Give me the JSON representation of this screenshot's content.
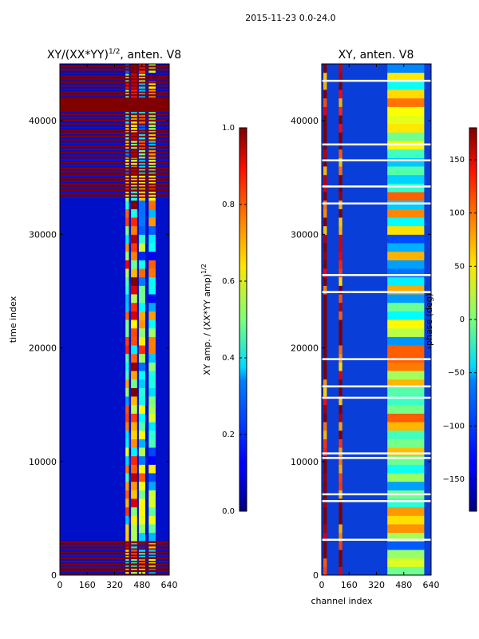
{
  "figure": {
    "suptitle": "2015-11-23 0.0-24.0"
  },
  "chart_data": [
    {
      "type": "heatmap",
      "title_prefix": "XY/(XX*YY)",
      "title_exponent": "1/2",
      "title_suffix": ", anten. V8",
      "xlabel": "",
      "ylabel": "time index",
      "xlim": [
        0,
        640
      ],
      "ylim": [
        0,
        45000
      ],
      "xticks": [
        0,
        160,
        320,
        480,
        640
      ],
      "xtick_labels": [
        "0",
        "160",
        "320",
        "480",
        "640"
      ],
      "yticks": [
        0,
        10000,
        20000,
        30000,
        40000
      ],
      "ytick_labels": [
        "0",
        "10000",
        "20000",
        "30000",
        "40000"
      ],
      "colormap": "jet",
      "colorbar": {
        "label_prefix": "XY amp. / (XX*YY amp)",
        "label_exponent": "1/2",
        "range": [
          0.0,
          1.0
        ],
        "ticks": [
          0.0,
          0.2,
          0.4,
          0.6,
          0.8,
          1.0
        ],
        "tick_labels": [
          "0.0",
          "0.2",
          "0.4",
          "0.6",
          "0.8",
          "1.0"
        ]
      },
      "background_value": 0.05,
      "saturated_bands": [
        {
          "start": 0,
          "end": 3000,
          "value": 1.0,
          "note": "dense stripes"
        },
        {
          "start": 33200,
          "end": 45000,
          "value": 1.0,
          "note": "dense stripes"
        },
        {
          "start": 40800,
          "end": 42000,
          "value": 1.0,
          "note": "solid"
        }
      ],
      "active_channels": [
        {
          "start": 384,
          "end": 404,
          "value": 0.55
        },
        {
          "start": 416,
          "end": 452,
          "value": 0.7
        },
        {
          "start": 462,
          "end": 500,
          "value": 0.5
        },
        {
          "start": 520,
          "end": 560,
          "value": 0.45
        }
      ]
    },
    {
      "type": "heatmap",
      "title": "XY, anten. V8",
      "xlabel": "channel index",
      "ylabel": "",
      "xlim": [
        0,
        640
      ],
      "ylim": [
        0,
        45000
      ],
      "xticks": [
        0,
        160,
        320,
        480,
        640
      ],
      "xtick_labels": [
        "0",
        "160",
        "320",
        "480",
        "640"
      ],
      "yticks": [
        0,
        10000,
        20000,
        30000,
        40000
      ],
      "ytick_labels": [
        "0",
        "10000",
        "20000",
        "30000",
        "40000"
      ],
      "colormap": "jet",
      "colorbar": {
        "label": "phase (deg)",
        "range": [
          -180,
          180
        ],
        "ticks": [
          -150,
          -100,
          -50,
          0,
          50,
          100,
          150
        ],
        "tick_labels": [
          "−150",
          "−100",
          "−50",
          "0",
          "50",
          "100",
          "150"
        ]
      },
      "background_value": -140,
      "hot_channels": [
        {
          "start": 10,
          "end": 30,
          "value": 170
        },
        {
          "start": 100,
          "end": 120,
          "value": 165
        }
      ],
      "active_channels": [
        {
          "start": 384,
          "end": 600,
          "value": 0
        }
      ],
      "white_gap_rows": [
        43600,
        38000,
        36600,
        34300,
        32800,
        26500,
        25000,
        19100,
        16700,
        15700,
        10800,
        10400,
        7200,
        6600,
        3200
      ]
    }
  ]
}
